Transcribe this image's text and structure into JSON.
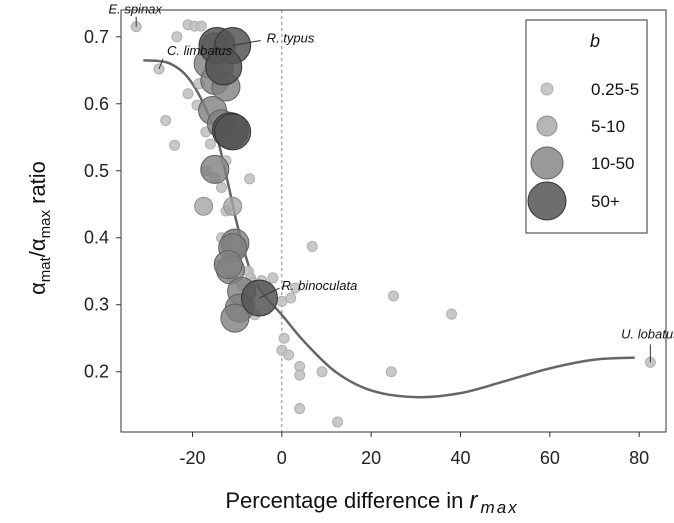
{
  "chart_data": {
    "type": "scatter",
    "xlabel_main": "Percentage difference in ",
    "xlabel_var": "r",
    "xlabel_sub": "max",
    "ylabel_pre": "α",
    "ylabel_sub1": "mat",
    "ylabel_mid": "/α",
    "ylabel_sub2": "max",
    "ylabel_post": " ratio",
    "xlim": [
      -36,
      86
    ],
    "ylim": [
      0.11,
      0.74
    ],
    "x_ticks": [
      -20,
      0,
      20,
      40,
      60,
      80
    ],
    "y_ticks": [
      0.2,
      0.3,
      0.4,
      0.5,
      0.6,
      0.7
    ],
    "x_tick_labels": [
      "-20",
      "0",
      "20",
      "40",
      "60",
      "80"
    ],
    "y_tick_labels": [
      "0.2",
      "0.3",
      "0.4",
      "0.5",
      "0.6",
      "0.7"
    ],
    "reference_line_x": 0,
    "legend": {
      "title": "b",
      "position": "top-right",
      "entries": [
        {
          "label": "0.25-5",
          "size_class": 0
        },
        {
          "label": "5-10",
          "size_class": 1
        },
        {
          "label": "10-50",
          "size_class": 2
        },
        {
          "label": "50+",
          "size_class": 3
        }
      ]
    },
    "colors": {
      "class0": "#c2c2c2",
      "class1": "#a4a4a4",
      "class2": "#7f7f7f",
      "class3": "#555555",
      "curve": "#666666",
      "refline": "#888888"
    },
    "points": [
      {
        "x": -32.6,
        "y": 0.715,
        "c": 0
      },
      {
        "x": -23.5,
        "y": 0.7,
        "c": 0
      },
      {
        "x": -21,
        "y": 0.718,
        "c": 0
      },
      {
        "x": -19.5,
        "y": 0.716,
        "c": 0
      },
      {
        "x": -18,
        "y": 0.716,
        "c": 0
      },
      {
        "x": -27.5,
        "y": 0.652,
        "c": 0
      },
      {
        "x": -21,
        "y": 0.615,
        "c": 0
      },
      {
        "x": -18.5,
        "y": 0.63,
        "c": 0
      },
      {
        "x": -19,
        "y": 0.598,
        "c": 0
      },
      {
        "x": -26,
        "y": 0.575,
        "c": 0
      },
      {
        "x": -24,
        "y": 0.538,
        "c": 0
      },
      {
        "x": -17,
        "y": 0.558,
        "c": 0
      },
      {
        "x": -16,
        "y": 0.54,
        "c": 0
      },
      {
        "x": -17,
        "y": 0.5,
        "c": 0
      },
      {
        "x": -15,
        "y": 0.49,
        "c": 0
      },
      {
        "x": -13.5,
        "y": 0.475,
        "c": 0
      },
      {
        "x": -12.5,
        "y": 0.515,
        "c": 0
      },
      {
        "x": -7.2,
        "y": 0.488,
        "c": 0
      },
      {
        "x": -12.5,
        "y": 0.44,
        "c": 0
      },
      {
        "x": -13.5,
        "y": 0.4,
        "c": 0
      },
      {
        "x": -11,
        "y": 0.405,
        "c": 0
      },
      {
        "x": -14,
        "y": 0.36,
        "c": 0
      },
      {
        "x": -12,
        "y": 0.39,
        "c": 0
      },
      {
        "x": -9,
        "y": 0.38,
        "c": 0
      },
      {
        "x": -7.5,
        "y": 0.35,
        "c": 0
      },
      {
        "x": -11,
        "y": 0.34,
        "c": 0
      },
      {
        "x": -9,
        "y": 0.33,
        "c": 0
      },
      {
        "x": -7,
        "y": 0.34,
        "c": 0
      },
      {
        "x": -6.5,
        "y": 0.332,
        "c": 0
      },
      {
        "x": -4.5,
        "y": 0.336,
        "c": 0
      },
      {
        "x": -2,
        "y": 0.34,
        "c": 0
      },
      {
        "x": -3,
        "y": 0.325,
        "c": 0
      },
      {
        "x": -8,
        "y": 0.31,
        "c": 0
      },
      {
        "x": -10.5,
        "y": 0.3,
        "c": 0
      },
      {
        "x": -7,
        "y": 0.3,
        "c": 0
      },
      {
        "x": -6,
        "y": 0.285,
        "c": 0
      },
      {
        "x": 0,
        "y": 0.305,
        "c": 0
      },
      {
        "x": 3,
        "y": 0.325,
        "c": 0
      },
      {
        "x": 6.8,
        "y": 0.387,
        "c": 0
      },
      {
        "x": 2,
        "y": 0.31,
        "c": 0
      },
      {
        "x": 0.5,
        "y": 0.25,
        "c": 0
      },
      {
        "x": 0,
        "y": 0.232,
        "c": 0
      },
      {
        "x": 1.5,
        "y": 0.225,
        "c": 0
      },
      {
        "x": 4,
        "y": 0.208,
        "c": 0
      },
      {
        "x": 4,
        "y": 0.195,
        "c": 0
      },
      {
        "x": 9,
        "y": 0.2,
        "c": 0
      },
      {
        "x": 4,
        "y": 0.145,
        "c": 0
      },
      {
        "x": 12.5,
        "y": 0.125,
        "c": 0
      },
      {
        "x": 24.5,
        "y": 0.2,
        "c": 0
      },
      {
        "x": 25,
        "y": 0.313,
        "c": 0
      },
      {
        "x": 38,
        "y": 0.286,
        "c": 0
      },
      {
        "x": 82.5,
        "y": 0.214,
        "c": 0
      },
      {
        "x": -17.5,
        "y": 0.447,
        "c": 1
      },
      {
        "x": -11,
        "y": 0.447,
        "c": 1
      },
      {
        "x": -15,
        "y": 0.685,
        "c": 2
      },
      {
        "x": -16.5,
        "y": 0.66,
        "c": 2
      },
      {
        "x": -14,
        "y": 0.655,
        "c": 2
      },
      {
        "x": -15,
        "y": 0.635,
        "c": 2
      },
      {
        "x": -12.5,
        "y": 0.625,
        "c": 2
      },
      {
        "x": -15.5,
        "y": 0.59,
        "c": 2
      },
      {
        "x": -13.5,
        "y": 0.57,
        "c": 2
      },
      {
        "x": -15,
        "y": 0.502,
        "c": 2
      },
      {
        "x": -10.5,
        "y": 0.392,
        "c": 2
      },
      {
        "x": -11,
        "y": 0.385,
        "c": 2
      },
      {
        "x": -11.5,
        "y": 0.352,
        "c": 2
      },
      {
        "x": -12,
        "y": 0.36,
        "c": 2
      },
      {
        "x": -9,
        "y": 0.32,
        "c": 2
      },
      {
        "x": -9.5,
        "y": 0.295,
        "c": 2
      },
      {
        "x": -10.5,
        "y": 0.28,
        "c": 2
      },
      {
        "x": -14.5,
        "y": 0.687,
        "c": 3
      },
      {
        "x": -11,
        "y": 0.687,
        "c": 3
      },
      {
        "x": -13,
        "y": 0.655,
        "c": 3
      },
      {
        "x": -11.5,
        "y": 0.56,
        "c": 3
      },
      {
        "x": -11,
        "y": 0.558,
        "c": 3
      },
      {
        "x": -5,
        "y": 0.31,
        "c": 3
      }
    ],
    "curve": [
      {
        "x": -31,
        "y": 0.665
      },
      {
        "x": -25,
        "y": 0.66
      },
      {
        "x": -20,
        "y": 0.63
      },
      {
        "x": -15,
        "y": 0.56
      },
      {
        "x": -12,
        "y": 0.48
      },
      {
        "x": -10,
        "y": 0.42
      },
      {
        "x": -7,
        "y": 0.35
      },
      {
        "x": -4,
        "y": 0.315
      },
      {
        "x": 0,
        "y": 0.285
      },
      {
        "x": 5,
        "y": 0.245
      },
      {
        "x": 12,
        "y": 0.2
      },
      {
        "x": 20,
        "y": 0.172
      },
      {
        "x": 30,
        "y": 0.162
      },
      {
        "x": 40,
        "y": 0.168
      },
      {
        "x": 50,
        "y": 0.186
      },
      {
        "x": 60,
        "y": 0.205
      },
      {
        "x": 70,
        "y": 0.218
      },
      {
        "x": 79,
        "y": 0.221
      }
    ],
    "annotations": [
      {
        "text": "E. spinax",
        "x": -32.6,
        "y": 0.715
      },
      {
        "text": "C. limbatus",
        "x": -27.5,
        "y": 0.652
      },
      {
        "text": "R. typus",
        "x": -11,
        "y": 0.687
      },
      {
        "text": "R. binoculata",
        "x": -5,
        "y": 0.31
      },
      {
        "text": "U. lobatus",
        "x": 82.5,
        "y": 0.214
      }
    ]
  }
}
